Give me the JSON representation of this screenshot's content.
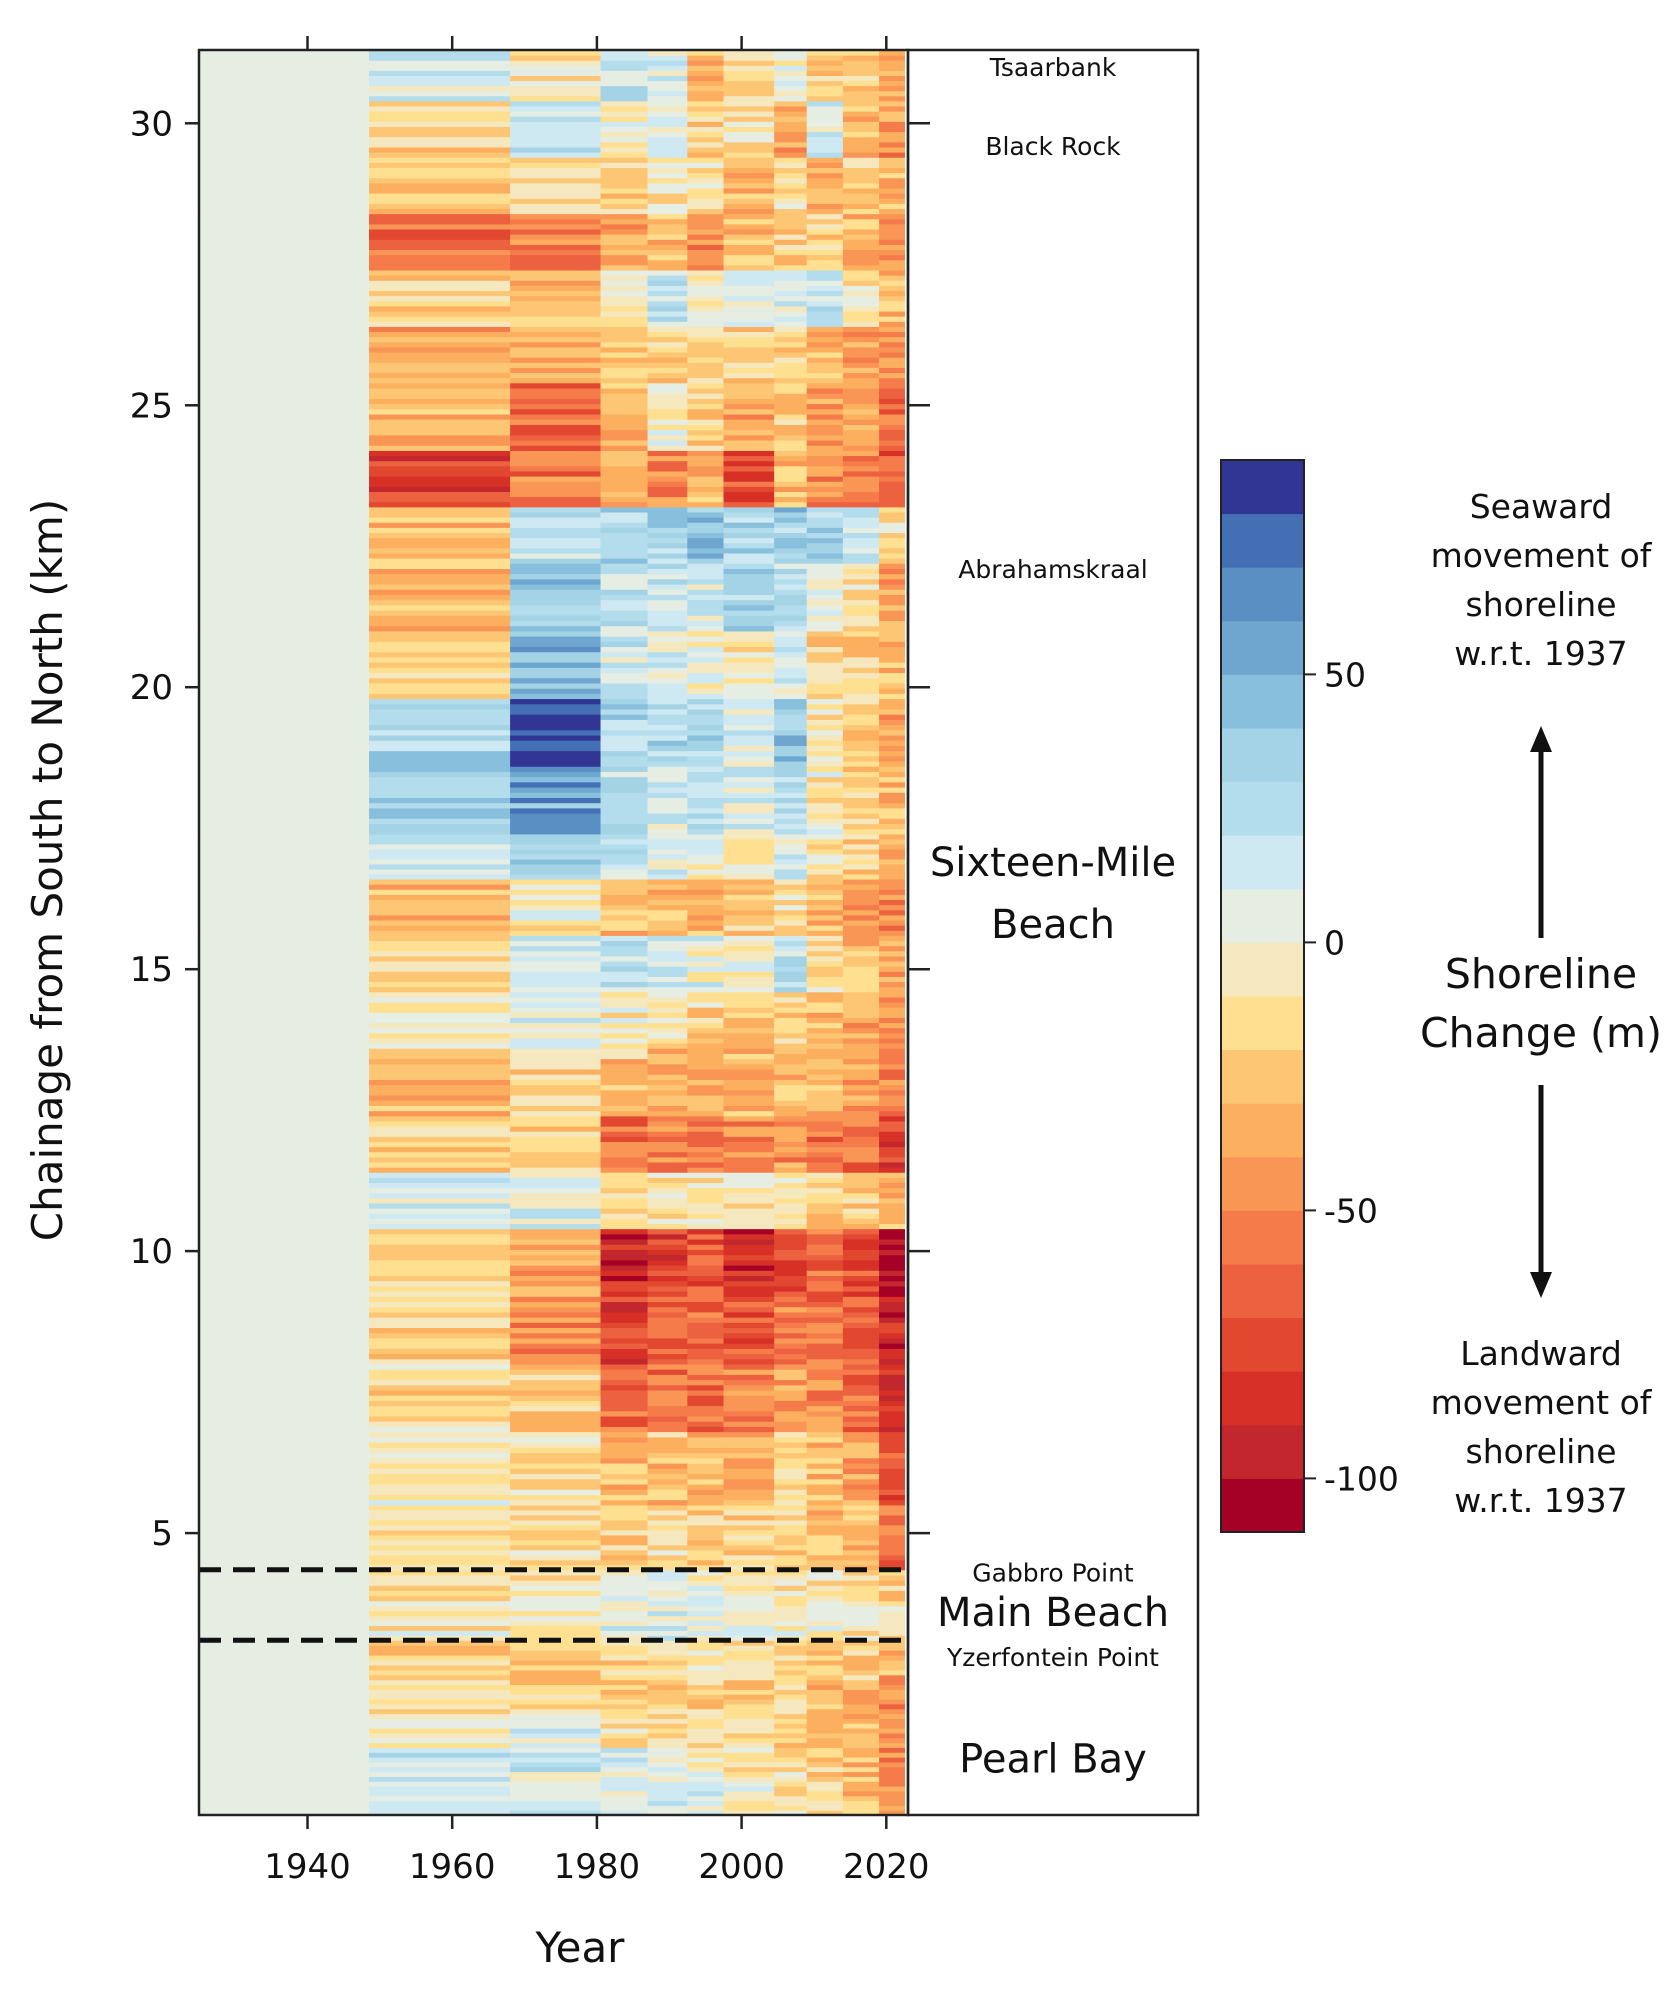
{
  "chart_data": {
    "type": "heatmap",
    "xlabel": "Year",
    "ylabel": "Chainage from South to North (km)",
    "x_ticks": [
      1940,
      1960,
      1980,
      2000,
      2020
    ],
    "y_ticks": [
      5,
      10,
      15,
      20,
      25,
      30
    ],
    "xlim": [
      1925,
      2023
    ],
    "ylim": [
      0,
      31.3
    ],
    "years": [
      1937,
      1955,
      1975,
      1984,
      1990,
      1995,
      2000,
      2005,
      2010,
      2015,
      2020
    ],
    "year_edges": [
      1925,
      1948.5,
      1968,
      1980.5,
      1987,
      1992.5,
      1997.5,
      2004.5,
      2009,
      2014,
      2019,
      2022.5
    ],
    "profiles": [
      {
        "start_km": 0.0,
        "end_km": 0.6,
        "values": [
          0,
          18,
          16,
          14,
          10,
          6,
          4,
          -10,
          -16,
          -24,
          -45
        ]
      },
      {
        "start_km": 0.6,
        "end_km": 1.2,
        "values": [
          0,
          22,
          14,
          10,
          2,
          -4,
          -8,
          -14,
          -20,
          -28,
          -48
        ]
      },
      {
        "start_km": 1.2,
        "end_km": 1.8,
        "values": [
          0,
          -2,
          6,
          -10,
          -14,
          -12,
          -16,
          -22,
          -26,
          -30,
          -52
        ]
      },
      {
        "start_km": 1.8,
        "end_km": 2.4,
        "values": [
          0,
          -12,
          -16,
          -20,
          -18,
          -20,
          -22,
          -20,
          -28,
          -34,
          -46
        ]
      },
      {
        "start_km": 2.4,
        "end_km": 3.1,
        "values": [
          0,
          -16,
          -22,
          -14,
          -12,
          -8,
          -14,
          -12,
          -18,
          -22,
          -36
        ]
      },
      {
        "start_km": 3.1,
        "end_km": 3.8,
        "values": [
          0,
          -4,
          -6,
          8,
          10,
          6,
          4,
          2,
          -4,
          -8,
          -14
        ]
      },
      {
        "start_km": 3.8,
        "end_km": 4.35,
        "values": [
          0,
          -10,
          -8,
          4,
          2,
          -2,
          -4,
          -6,
          -8,
          -10,
          -18
        ]
      },
      {
        "start_km": 4.35,
        "end_km": 5.5,
        "values": [
          0,
          -10,
          -16,
          -22,
          -16,
          -20,
          -22,
          -18,
          -28,
          -34,
          -62
        ]
      },
      {
        "start_km": 5.5,
        "end_km": 6.8,
        "values": [
          0,
          -4,
          -12,
          -30,
          -26,
          -28,
          -32,
          -14,
          -30,
          -40,
          -70
        ]
      },
      {
        "start_km": 6.8,
        "end_km": 8.0,
        "values": [
          0,
          -14,
          -24,
          -62,
          -56,
          -58,
          -50,
          -44,
          -50,
          -58,
          -86
        ]
      },
      {
        "start_km": 8.0,
        "end_km": 9.2,
        "values": [
          0,
          -18,
          -48,
          -82,
          -70,
          -62,
          -66,
          -52,
          -58,
          -60,
          -92
        ]
      },
      {
        "start_km": 9.2,
        "end_km": 10.4,
        "values": [
          0,
          -14,
          -36,
          -90,
          -80,
          -72,
          -86,
          -70,
          -62,
          -72,
          -104
        ]
      },
      {
        "start_km": 10.4,
        "end_km": 11.4,
        "values": [
          0,
          12,
          8,
          -8,
          -12,
          -10,
          -8,
          -12,
          -20,
          -22,
          -30
        ]
      },
      {
        "start_km": 11.4,
        "end_km": 12.4,
        "values": [
          0,
          -20,
          -22,
          -58,
          -48,
          -54,
          -50,
          -46,
          -56,
          -60,
          -78
        ]
      },
      {
        "start_km": 12.4,
        "end_km": 13.6,
        "values": [
          0,
          -30,
          -14,
          -24,
          -32,
          -36,
          -30,
          -24,
          -28,
          -42,
          -54
        ]
      },
      {
        "start_km": 13.6,
        "end_km": 14.6,
        "values": [
          0,
          -10,
          4,
          -4,
          -12,
          -16,
          -18,
          -20,
          -30,
          -36,
          -44
        ]
      },
      {
        "start_km": 14.6,
        "end_km": 15.6,
        "values": [
          0,
          -18,
          14,
          20,
          12,
          4,
          2,
          26,
          -12,
          -26,
          -40
        ]
      },
      {
        "start_km": 15.6,
        "end_km": 16.6,
        "values": [
          0,
          -30,
          -4,
          -28,
          -24,
          -30,
          -20,
          -14,
          -34,
          -44,
          -50
        ]
      },
      {
        "start_km": 16.6,
        "end_km": 17.4,
        "values": [
          0,
          12,
          40,
          16,
          10,
          4,
          -8,
          14,
          -10,
          -20,
          -34
        ]
      },
      {
        "start_km": 17.4,
        "end_km": 18.6,
        "values": [
          0,
          34,
          56,
          22,
          14,
          20,
          6,
          28,
          -6,
          -18,
          -30
        ]
      },
      {
        "start_km": 18.6,
        "end_km": 19.8,
        "values": [
          0,
          30,
          88,
          30,
          24,
          30,
          10,
          40,
          -8,
          -22,
          -36
        ]
      },
      {
        "start_km": 19.8,
        "end_km": 21.0,
        "values": [
          0,
          -14,
          46,
          14,
          8,
          2,
          -6,
          12,
          -16,
          -20,
          -28
        ]
      },
      {
        "start_km": 21.0,
        "end_km": 22.2,
        "values": [
          0,
          -34,
          38,
          20,
          18,
          12,
          28,
          22,
          4,
          -6,
          -40
        ]
      },
      {
        "start_km": 22.2,
        "end_km": 23.2,
        "values": [
          0,
          -24,
          18,
          30,
          34,
          42,
          26,
          36,
          34,
          16,
          -12
        ]
      },
      {
        "start_km": 23.2,
        "end_km": 24.2,
        "values": [
          0,
          -80,
          -54,
          -42,
          -52,
          -34,
          -76,
          -28,
          -46,
          -52,
          -66
        ]
      },
      {
        "start_km": 24.2,
        "end_km": 25.4,
        "values": [
          0,
          -32,
          -64,
          -30,
          2,
          -20,
          -38,
          -22,
          -44,
          -40,
          -58
        ]
      },
      {
        "start_km": 25.4,
        "end_km": 26.4,
        "values": [
          0,
          -40,
          -36,
          -32,
          -16,
          -24,
          -20,
          -18,
          -30,
          -36,
          -42
        ]
      },
      {
        "start_km": 26.4,
        "end_km": 27.4,
        "values": [
          0,
          -20,
          -28,
          -4,
          24,
          -4,
          12,
          6,
          14,
          -8,
          -30
        ]
      },
      {
        "start_km": 27.4,
        "end_km": 28.4,
        "values": [
          0,
          -56,
          -52,
          -34,
          -26,
          -44,
          -32,
          -22,
          -18,
          -30,
          -48
        ]
      },
      {
        "start_km": 28.4,
        "end_km": 29.4,
        "values": [
          0,
          -26,
          -16,
          -20,
          -8,
          -12,
          -26,
          -14,
          -32,
          -20,
          -34
        ]
      },
      {
        "start_km": 29.4,
        "end_km": 30.4,
        "values": [
          0,
          -18,
          24,
          -4,
          6,
          -18,
          -12,
          -34,
          16,
          -28,
          -46
        ]
      },
      {
        "start_km": 30.4,
        "end_km": 31.3,
        "values": [
          0,
          14,
          -10,
          22,
          10,
          -28,
          -16,
          4,
          -22,
          -24,
          -40
        ]
      }
    ],
    "color_scale": {
      "bin_edges": [
        -110,
        -100,
        -90,
        -80,
        -70,
        -60,
        -50,
        -40,
        -30,
        -20,
        -10,
        0,
        10,
        20,
        30,
        40,
        50,
        60,
        70,
        80,
        90
      ],
      "colors": [
        "#a50026",
        "#c1272d",
        "#d73027",
        "#e2472f",
        "#ec6140",
        "#f57b4a",
        "#f99656",
        "#fcaf5f",
        "#fdc674",
        "#fee090",
        "#f5e8bf",
        "#e6ede2",
        "#cfe9f2",
        "#b3dcec",
        "#a4d3e6",
        "#88bfdd",
        "#6ea6cf",
        "#5a8fc4",
        "#4370b5",
        "#313695"
      ],
      "tick_values": [
        50,
        0,
        -50,
        -100
      ],
      "tick_labels": [
        "50",
        "0",
        "-50",
        "-100"
      ],
      "title_lines": [
        "Shoreline",
        "Change (m)"
      ],
      "seaward_lines": [
        "Seaward",
        "movement of",
        "shoreline",
        "w.r.t. 1937"
      ],
      "landward_lines": [
        "Landward",
        "movement of",
        "shoreline",
        "w.r.t. 1937"
      ]
    },
    "boundaries_km": [
      3.1,
      4.35
    ],
    "locations": [
      {
        "name": "Tsaarbank",
        "km": 31.0,
        "size": "small"
      },
      {
        "name": "Black Rock",
        "km": 29.6,
        "size": "small"
      },
      {
        "name": "Abrahamskraal",
        "km": 22.1,
        "size": "small"
      },
      {
        "name": "Sixteen-Mile",
        "km": 16.9,
        "size": "large"
      },
      {
        "name": "Beach",
        "km": 15.8,
        "size": "large"
      },
      {
        "name": "Gabbro Point",
        "km": 4.3,
        "size": "small"
      },
      {
        "name": "Main Beach",
        "km": 3.6,
        "size": "large"
      },
      {
        "name": "Yzerfontein Point",
        "km": 2.8,
        "size": "small"
      },
      {
        "name": "Pearl Bay",
        "km": 1.0,
        "size": "large"
      }
    ]
  }
}
